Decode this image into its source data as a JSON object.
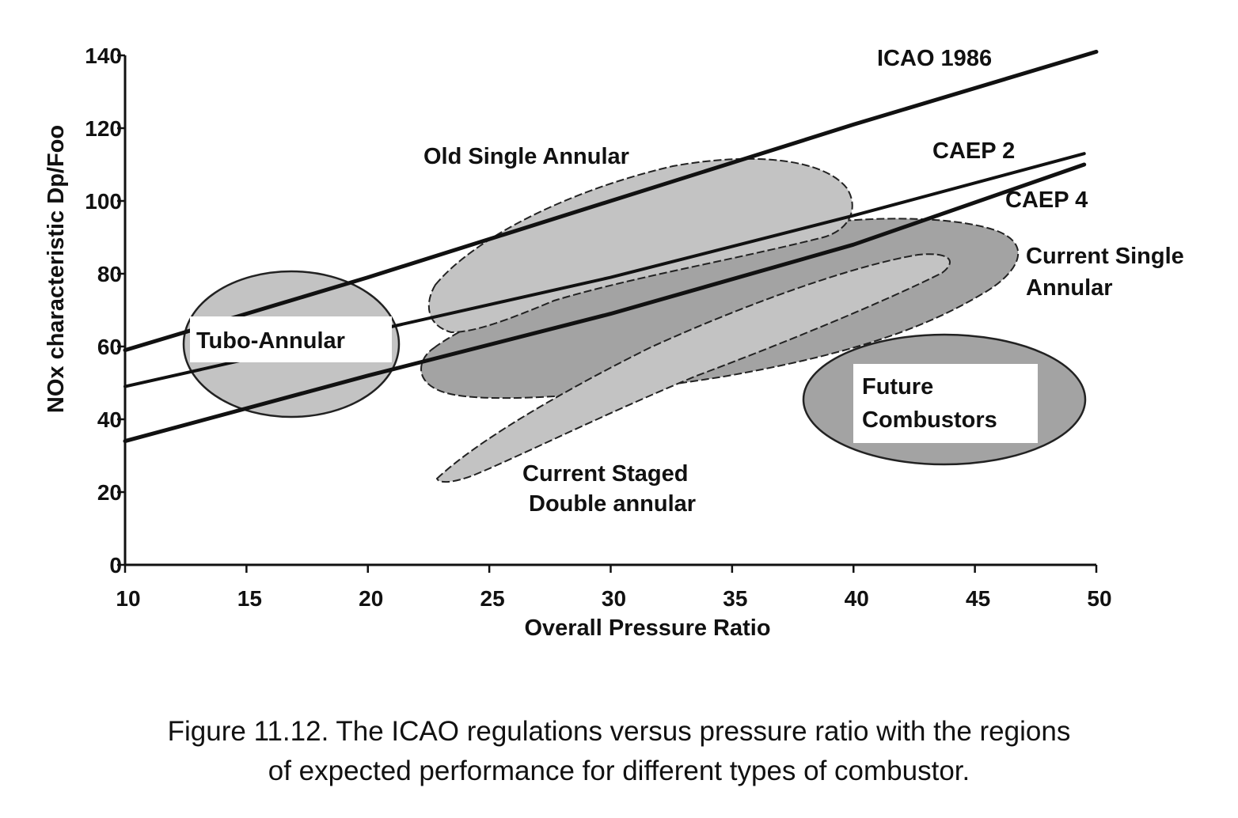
{
  "chart_data": {
    "type": "line",
    "xlabel": "Overall Pressure Ratio",
    "ylabel": "NOx characteristic Dp/Foo",
    "xlim": [
      10,
      50
    ],
    "ylim": [
      0,
      140
    ],
    "xticks": [
      10,
      15,
      20,
      25,
      30,
      35,
      40,
      45,
      50
    ],
    "yticks": [
      0,
      20,
      40,
      60,
      80,
      100,
      120,
      140
    ],
    "grid": false,
    "series": [
      {
        "name": "ICAO 1986",
        "points": [
          [
            10,
            59
          ],
          [
            20,
            79
          ],
          [
            30,
            100
          ],
          [
            40,
            121
          ],
          [
            50,
            141
          ]
        ]
      },
      {
        "name": "CAEP 2",
        "points": [
          [
            10,
            49
          ],
          [
            30,
            79
          ],
          [
            40,
            96
          ],
          [
            49.5,
            113
          ]
        ]
      },
      {
        "name": "CAEP 4",
        "points": [
          [
            10,
            34
          ],
          [
            20,
            52
          ],
          [
            30,
            69
          ],
          [
            40,
            88
          ],
          [
            49.5,
            110
          ]
        ]
      }
    ],
    "regions": [
      {
        "name": "Tubo-Annular",
        "label": "Tubo-Annular",
        "center": [
          16.8,
          60
        ],
        "shade": "light"
      },
      {
        "name": "Old Single Annular",
        "label": "Old Single Annular",
        "center": [
          31,
          87
        ],
        "shade": "light"
      },
      {
        "name": "Current Single Annular",
        "label_lines": [
          "Current Single",
          "Annular"
        ],
        "center": [
          35,
          69
        ],
        "shade": "medium"
      },
      {
        "name": "Current Staged Double annular",
        "label_lines": [
          "Current Staged",
          "Double annular"
        ],
        "center": [
          33,
          54
        ],
        "shade": "light"
      },
      {
        "name": "Future Combustors",
        "label_lines": [
          "Future",
          "Combustors"
        ],
        "center": [
          43.7,
          45
        ],
        "shade": "medium"
      }
    ]
  },
  "caption": {
    "line1": "Figure 11.12.  The ICAO regulations  versus pressure ratio with the regions",
    "line2": "of expected performance  for different types of combustor."
  },
  "colors": {
    "light_region": "#c3c3c3",
    "medium_region": "#a3a3a3",
    "ink": "#111111"
  }
}
